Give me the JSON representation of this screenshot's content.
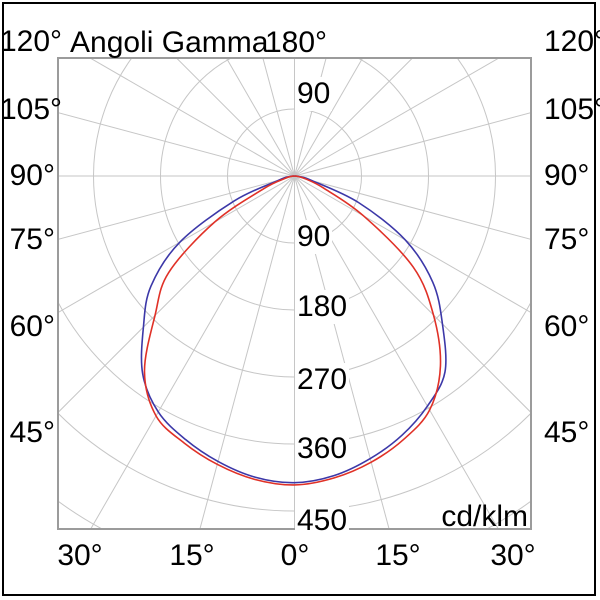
{
  "title": "Angoli Gamma",
  "unit": "cd/klm",
  "labels": {
    "top_center": "180°",
    "side": [
      "120°",
      "105°",
      "90°",
      "75°",
      "60°",
      "45°"
    ],
    "bottom": [
      "30°",
      "15°",
      "0°",
      "15°",
      "30°"
    ],
    "radial_upper": "90",
    "radial": [
      "90",
      "180",
      "270",
      "360",
      "450"
    ]
  },
  "chart_data": {
    "type": "polar-photometric",
    "title": "Angoli Gamma",
    "unit": "cd/klm",
    "gamma_deg": [
      0,
      7.5,
      15,
      22.5,
      30,
      37.5,
      45,
      52.5,
      60,
      67.5,
      75,
      82.5,
      90
    ],
    "radial_ticks": [
      90,
      180,
      270,
      360,
      450
    ],
    "radial_grid_max": 540,
    "grid_angle_step_deg": 15,
    "series": [
      {
        "id": "curve-blue",
        "color": "#3c38a8",
        "left": [
          412,
          408,
          397,
          383,
          366,
          335,
          287,
          243,
          178,
          88,
          22,
          8,
          0
        ],
        "right": [
          412,
          406,
          393,
          377,
          357,
          332,
          281,
          234,
          172,
          93,
          25,
          8,
          0
        ]
      },
      {
        "id": "curve-red",
        "color": "#e03127",
        "left": [
          415,
          411,
          401,
          388,
          372,
          331,
          265,
          213,
          124,
          45,
          14,
          5,
          0
        ],
        "right": [
          415,
          409,
          398,
          383,
          363,
          322,
          264,
          201,
          107,
          42,
          16,
          5,
          0
        ]
      }
    ],
    "colors": {
      "grid": "#c6c6c6",
      "plot_border": "#9b9b9b",
      "text": "#000000",
      "background": "#ffffff"
    }
  }
}
